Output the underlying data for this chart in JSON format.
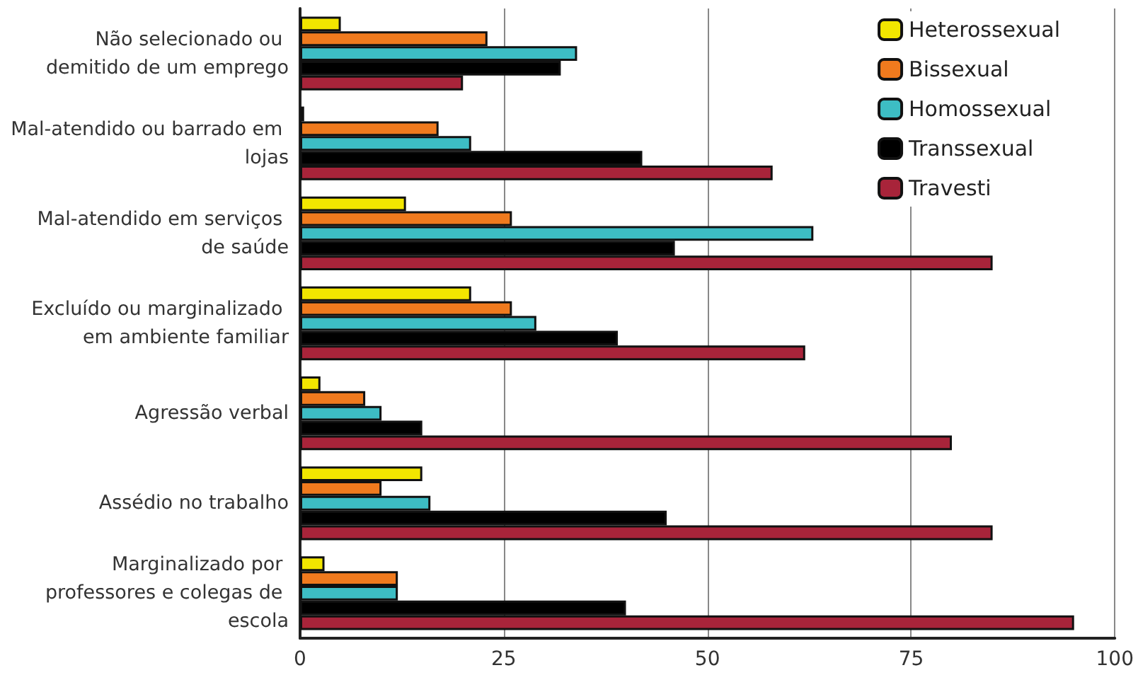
{
  "chart_data": {
    "type": "bar",
    "orientation": "horizontal",
    "categories": [
      "Não selecionado ou demitido de um emprego",
      "Mal-atendido ou barrado em lojas",
      "Mal-atendido em serviços de saúde",
      "Excluído ou marginalizado em ambiente familiar",
      "Agressão verbal",
      "Assédio no trabalho",
      "Marginalizado por professores e colegas de escola"
    ],
    "series": [
      {
        "name": "Heterossexual",
        "color": "#f2e600",
        "values": [
          5,
          0.5,
          13,
          21,
          2.5,
          15,
          3
        ]
      },
      {
        "name": "Bissexual",
        "color": "#f07a1e",
        "values": [
          23,
          17,
          26,
          26,
          8,
          10,
          12
        ]
      },
      {
        "name": "Homossexual",
        "color": "#3dbdc4",
        "values": [
          34,
          21,
          63,
          29,
          10,
          16,
          12
        ]
      },
      {
        "name": "Transsexual",
        "color": "#000000",
        "values": [
          32,
          42,
          46,
          39,
          15,
          45,
          40
        ]
      },
      {
        "name": "Travesti",
        "color": "#a8243a",
        "values": [
          20,
          58,
          85,
          62,
          80,
          85,
          95
        ]
      }
    ],
    "xlim": [
      0,
      100
    ],
    "xticks": [
      0,
      25,
      50,
      75,
      100
    ],
    "grid": "x",
    "legend": "top right"
  }
}
